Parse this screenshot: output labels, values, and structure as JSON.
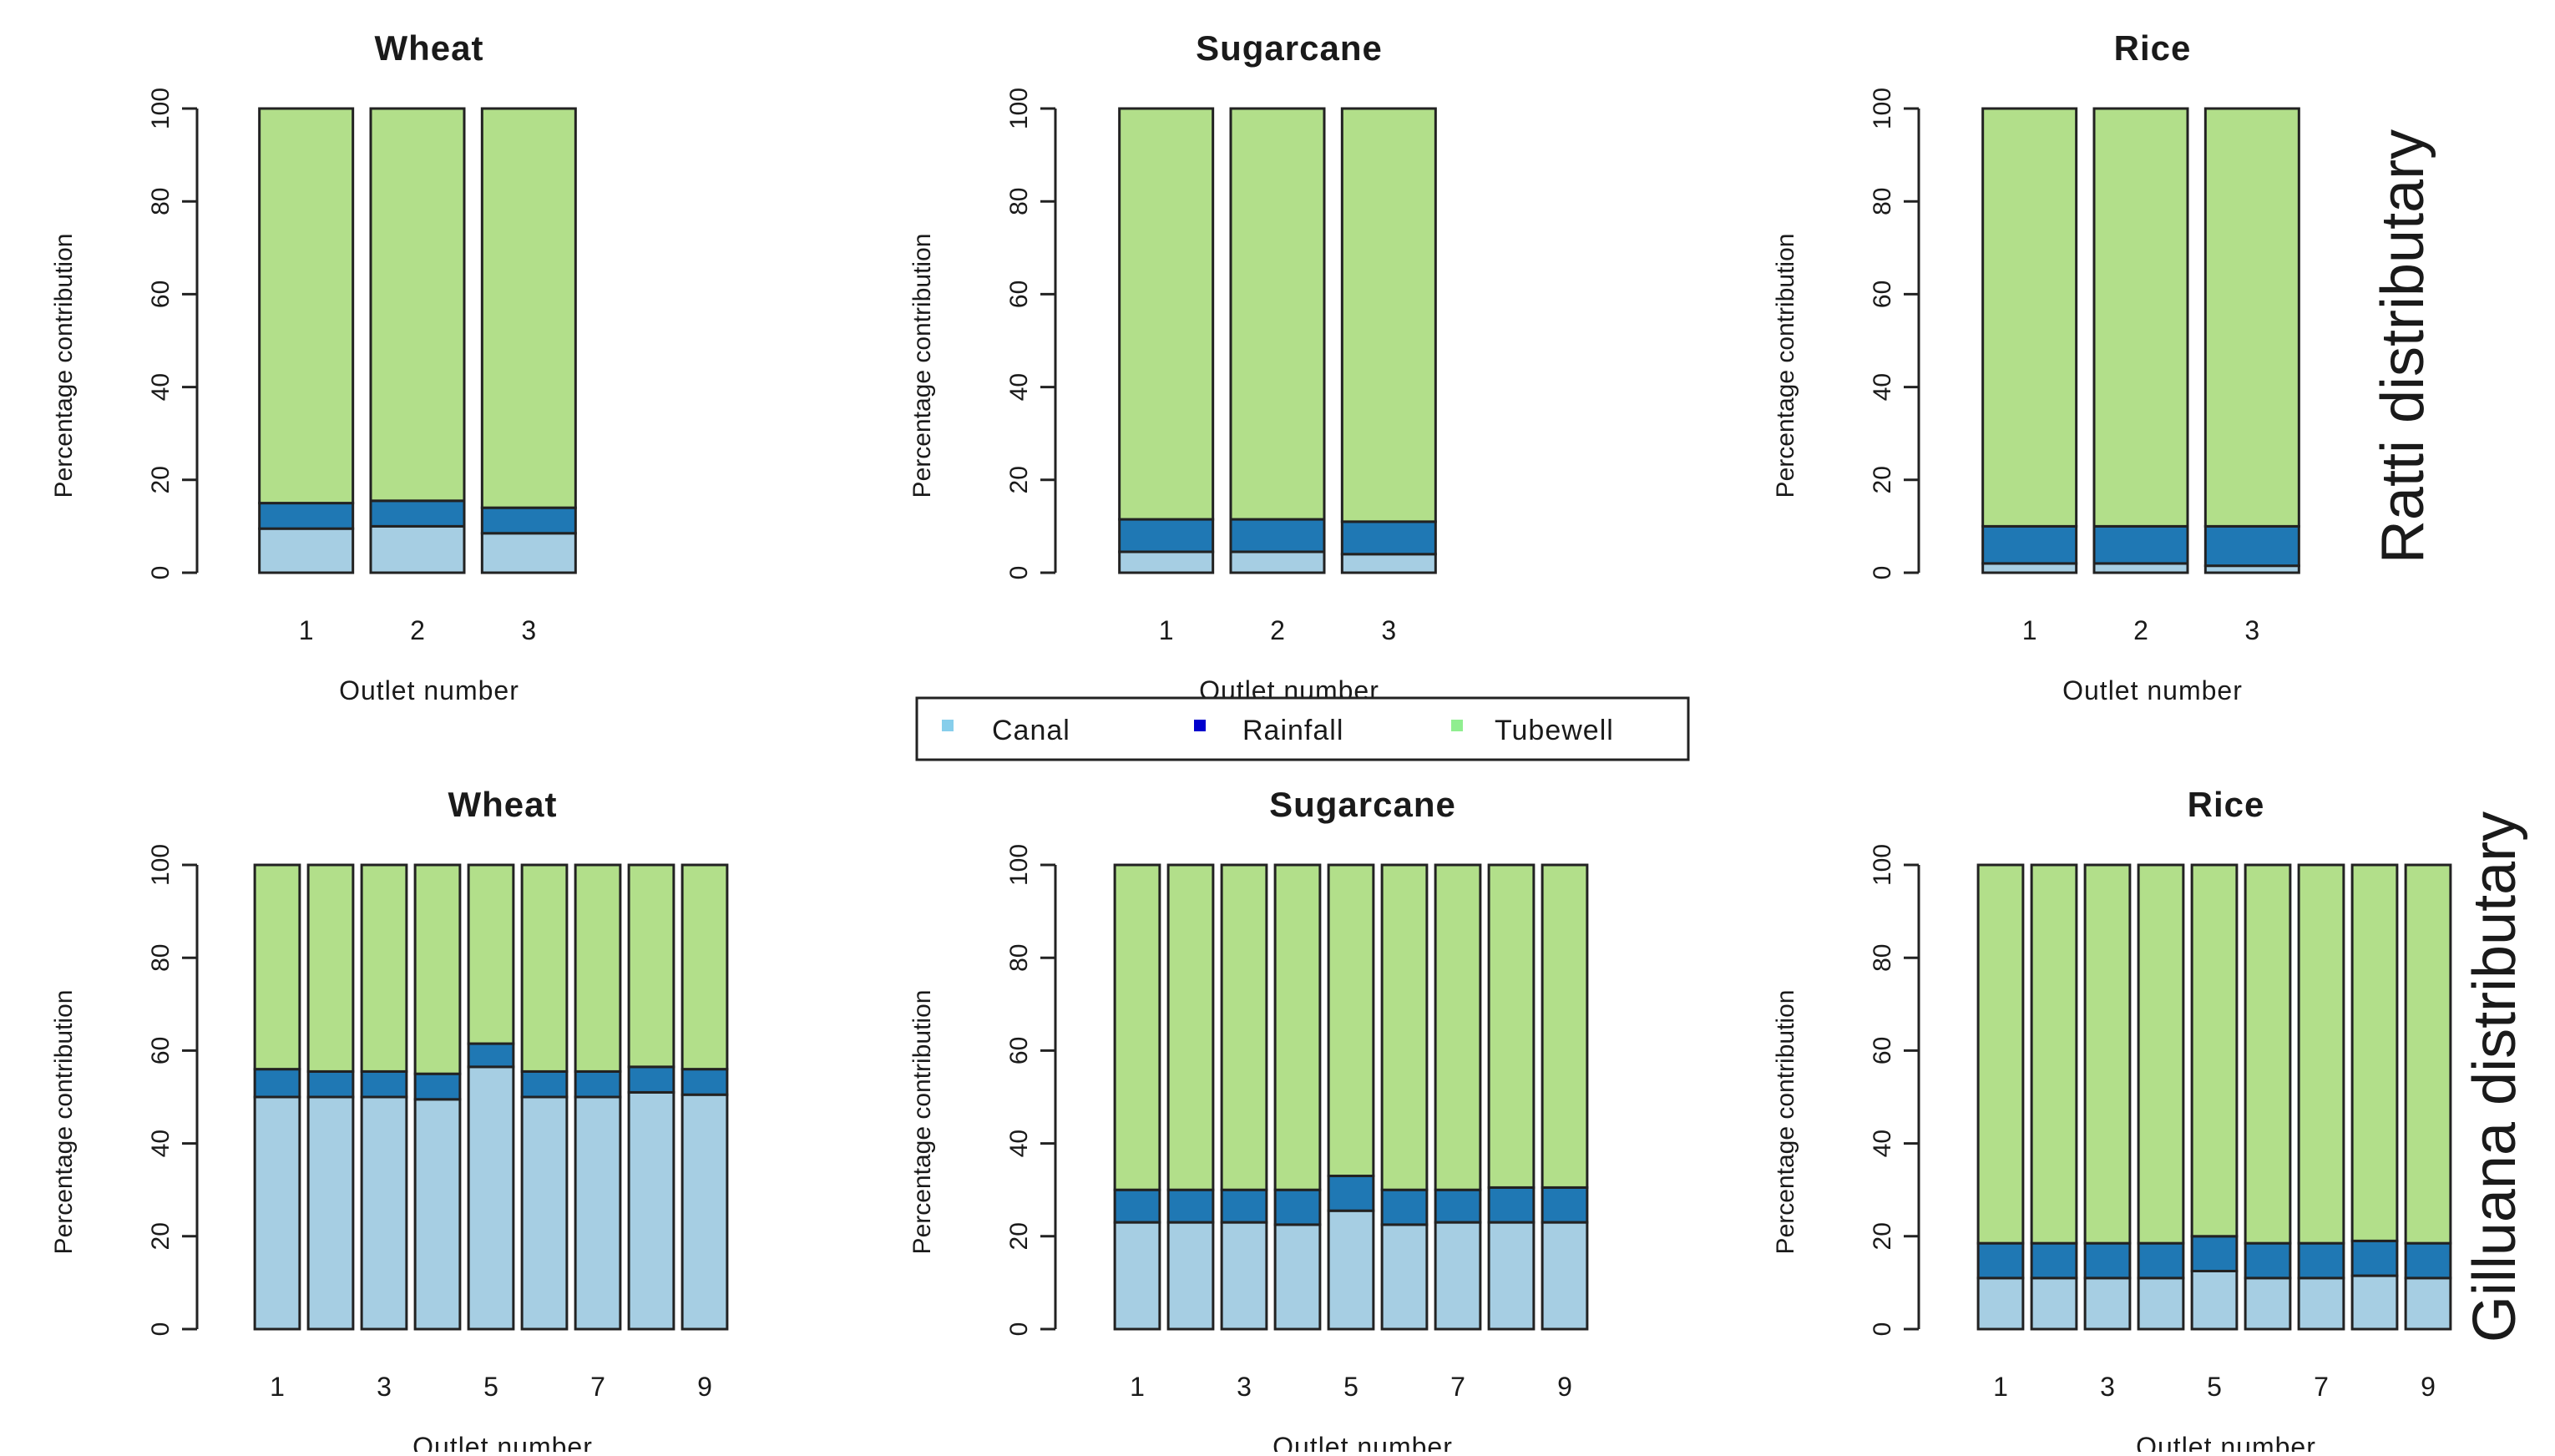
{
  "legend": {
    "items": [
      {
        "label": "Canal",
        "color": "#a6cee3"
      },
      {
        "label": "Rainfall",
        "color": "#1f78b4"
      },
      {
        "label": "Tubewell",
        "color": "#b2df8a"
      }
    ]
  },
  "row_labels": [
    "Ratti distributary",
    "Gilluana distributary"
  ],
  "chart_data": [
    {
      "type": "bar",
      "stacked": true,
      "row": 0,
      "col": 0,
      "title": "Wheat",
      "xlabel": "Outlet number",
      "ylabel": "Percentage contribution",
      "ylim": [
        0,
        100
      ],
      "yticks": [
        0,
        20,
        40,
        60,
        80,
        100
      ],
      "categories": [
        "1",
        "2",
        "3"
      ],
      "x_tick_labels": [
        "1",
        "2",
        "3"
      ],
      "series": [
        {
          "name": "Canal",
          "values": [
            9.5,
            10,
            8.5
          ]
        },
        {
          "name": "Rainfall",
          "values": [
            5.5,
            5.5,
            5.5
          ]
        },
        {
          "name": "Tubewell",
          "values": [
            85,
            84.5,
            86
          ]
        }
      ]
    },
    {
      "type": "bar",
      "stacked": true,
      "row": 0,
      "col": 1,
      "title": "Sugarcane",
      "xlabel": "Outlet number",
      "ylabel": "Percentage contribution",
      "ylim": [
        0,
        100
      ],
      "yticks": [
        0,
        20,
        40,
        60,
        80,
        100
      ],
      "categories": [
        "1",
        "2",
        "3"
      ],
      "x_tick_labels": [
        "1",
        "2",
        "3"
      ],
      "series": [
        {
          "name": "Canal",
          "values": [
            4.5,
            4.5,
            4
          ]
        },
        {
          "name": "Rainfall",
          "values": [
            7,
            7,
            7
          ]
        },
        {
          "name": "Tubewell",
          "values": [
            88.5,
            88.5,
            89
          ]
        }
      ]
    },
    {
      "type": "bar",
      "stacked": true,
      "row": 0,
      "col": 2,
      "title": "Rice",
      "xlabel": "Outlet number",
      "ylabel": "Percentage contribution",
      "ylim": [
        0,
        100
      ],
      "yticks": [
        0,
        20,
        40,
        60,
        80,
        100
      ],
      "categories": [
        "1",
        "2",
        "3"
      ],
      "x_tick_labels": [
        "1",
        "2",
        "3"
      ],
      "series": [
        {
          "name": "Canal",
          "values": [
            2,
            2,
            1.5
          ]
        },
        {
          "name": "Rainfall",
          "values": [
            8,
            8,
            8.5
          ]
        },
        {
          "name": "Tubewell",
          "values": [
            90,
            90,
            90
          ]
        }
      ]
    },
    {
      "type": "bar",
      "stacked": true,
      "row": 1,
      "col": 0,
      "title": "Wheat",
      "xlabel": "Outlet number",
      "ylabel": "Percentage contribution",
      "ylim": [
        0,
        100
      ],
      "yticks": [
        0,
        20,
        40,
        60,
        80,
        100
      ],
      "categories": [
        "1",
        "2",
        "3",
        "4",
        "5",
        "6",
        "7",
        "8",
        "9"
      ],
      "x_tick_labels": [
        "1",
        "",
        "3",
        "",
        "5",
        "",
        "7",
        "",
        "9"
      ],
      "series": [
        {
          "name": "Canal",
          "values": [
            50,
            50,
            50,
            49.5,
            56.5,
            50,
            50,
            51,
            50.5
          ]
        },
        {
          "name": "Rainfall",
          "values": [
            6,
            5.5,
            5.5,
            5.5,
            5,
            5.5,
            5.5,
            5.5,
            5.5
          ]
        },
        {
          "name": "Tubewell",
          "values": [
            44,
            44.5,
            44.5,
            45,
            38.5,
            44.5,
            44.5,
            43.5,
            44
          ]
        }
      ]
    },
    {
      "type": "bar",
      "stacked": true,
      "row": 1,
      "col": 1,
      "title": "Sugarcane",
      "xlabel": "Outlet number",
      "ylabel": "Percentage contribution",
      "ylim": [
        0,
        100
      ],
      "yticks": [
        0,
        20,
        40,
        60,
        80,
        100
      ],
      "categories": [
        "1",
        "2",
        "3",
        "4",
        "5",
        "6",
        "7",
        "8",
        "9"
      ],
      "x_tick_labels": [
        "1",
        "",
        "3",
        "",
        "5",
        "",
        "7",
        "",
        "9"
      ],
      "series": [
        {
          "name": "Canal",
          "values": [
            23,
            23,
            23,
            22.5,
            25.5,
            22.5,
            23,
            23,
            23
          ]
        },
        {
          "name": "Rainfall",
          "values": [
            7,
            7,
            7,
            7.5,
            7.5,
            7.5,
            7,
            7.5,
            7.5
          ]
        },
        {
          "name": "Tubewell",
          "values": [
            70,
            70,
            70,
            70,
            67,
            70,
            70,
            69.5,
            69.5
          ]
        }
      ]
    },
    {
      "type": "bar",
      "stacked": true,
      "row": 1,
      "col": 2,
      "title": "Rice",
      "xlabel": "Outlet number",
      "ylabel": "Percentage contribution",
      "ylim": [
        0,
        100
      ],
      "yticks": [
        0,
        20,
        40,
        60,
        80,
        100
      ],
      "categories": [
        "1",
        "2",
        "3",
        "4",
        "5",
        "6",
        "7",
        "8",
        "9"
      ],
      "x_tick_labels": [
        "1",
        "",
        "3",
        "",
        "5",
        "",
        "7",
        "",
        "9"
      ],
      "series": [
        {
          "name": "Canal",
          "values": [
            11,
            11,
            11,
            11,
            12.5,
            11,
            11,
            11.5,
            11
          ]
        },
        {
          "name": "Rainfall",
          "values": [
            7.5,
            7.5,
            7.5,
            7.5,
            7.5,
            7.5,
            7.5,
            7.5,
            7.5
          ]
        },
        {
          "name": "Tubewell",
          "values": [
            81.5,
            81.5,
            81.5,
            81.5,
            80,
            81.5,
            81.5,
            81,
            81.5
          ]
        }
      ]
    }
  ]
}
